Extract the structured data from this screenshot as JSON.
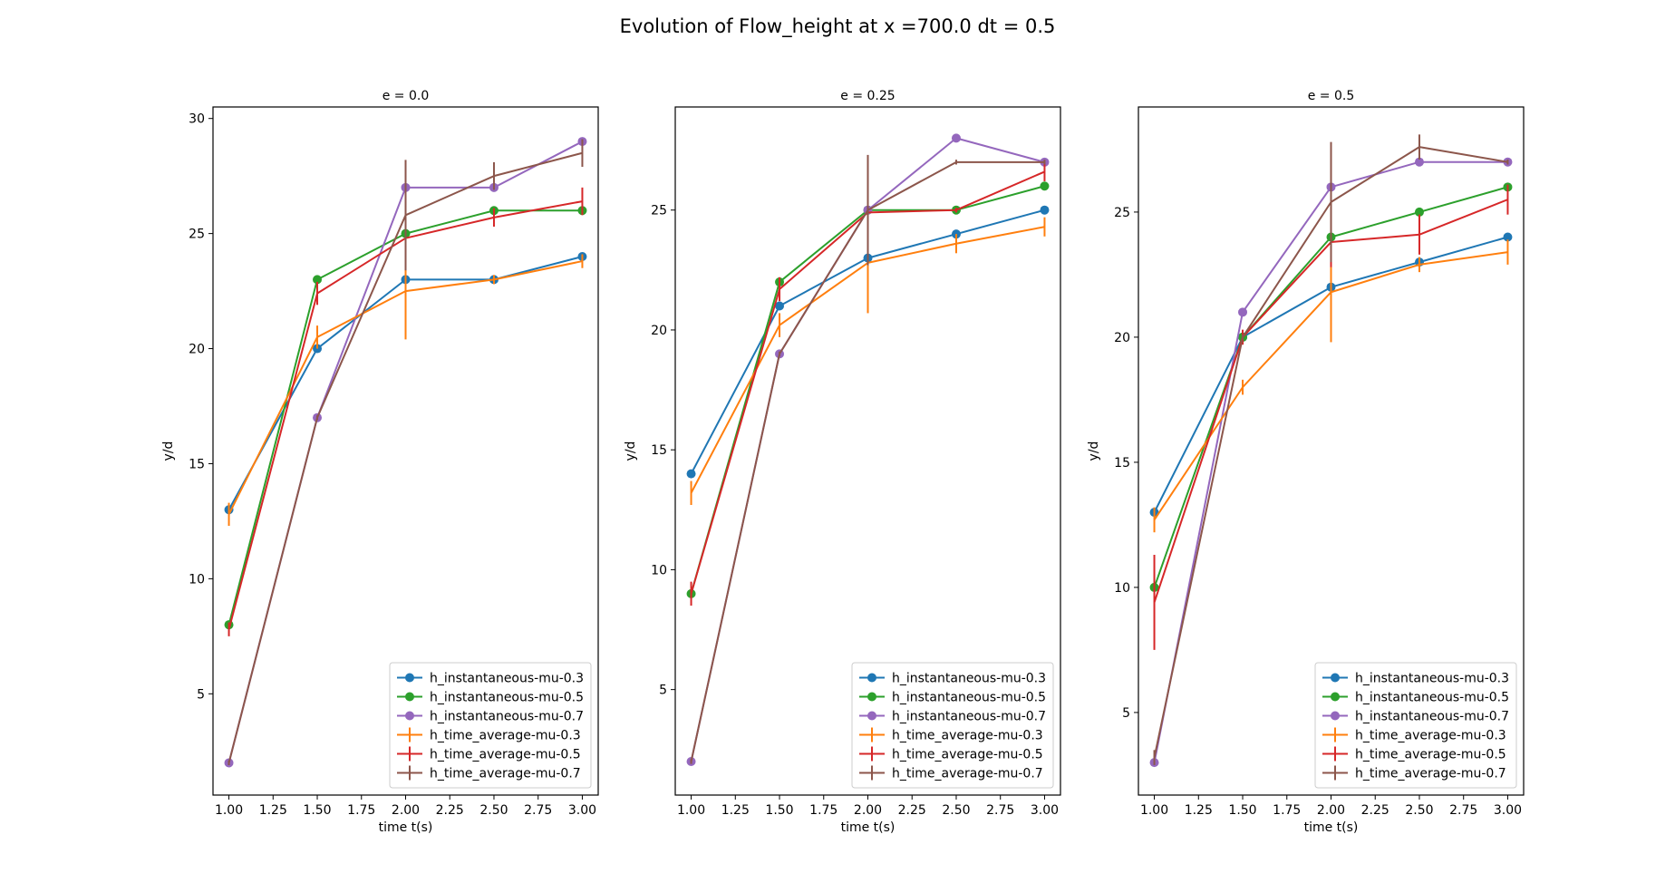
{
  "figure": {
    "suptitle": "Evolution of Flow_height at x =700.0 dt = 0.5"
  },
  "chart_data": [
    {
      "type": "line",
      "title": "e = 0.0",
      "xlabel": "time t(s)",
      "ylabel": "y/d",
      "xlim": [
        0.91,
        3.09
      ],
      "ylim": [
        0.6,
        30.5
      ],
      "xticks": [
        "1.00",
        "1.25",
        "1.50",
        "1.75",
        "2.00",
        "2.25",
        "2.50",
        "2.75",
        "3.00"
      ],
      "yticks": [
        "5",
        "10",
        "15",
        "20",
        "25",
        "30"
      ],
      "legend_position": "lower right",
      "x": [
        1.0,
        1.5,
        2.0,
        2.5,
        3.0
      ],
      "series": [
        {
          "name": "h_instantaneous-mu-0.3",
          "color": "#1f77b4",
          "marker": "circle",
          "values": [
            13,
            20,
            23,
            23,
            24
          ]
        },
        {
          "name": "h_instantaneous-mu-0.5",
          "color": "#2ca02c",
          "marker": "circle",
          "values": [
            8,
            23,
            25,
            26,
            26
          ]
        },
        {
          "name": "h_instantaneous-mu-0.7",
          "color": "#9467bd",
          "marker": "circle",
          "values": [
            2,
            17,
            27,
            27,
            29
          ]
        },
        {
          "name": "h_time_average-mu-0.3",
          "color": "#ff7f0e",
          "marker": "errorbar",
          "values": [
            12.8,
            20.5,
            22.5,
            23.0,
            23.8
          ],
          "errors": [
            0.5,
            0.5,
            2.1,
            0.2,
            0.3
          ]
        },
        {
          "name": "h_time_average-mu-0.5",
          "color": "#d62728",
          "marker": "errorbar",
          "values": [
            7.8,
            22.4,
            24.8,
            25.7,
            26.4
          ],
          "errors": [
            0.3,
            0.5,
            0.8,
            0.4,
            0.6
          ]
        },
        {
          "name": "h_time_average-mu-0.7",
          "color": "#8c564b",
          "marker": "errorbar",
          "values": [
            2.0,
            17.0,
            25.8,
            27.5,
            28.5
          ],
          "errors": [
            0.1,
            0.1,
            2.4,
            0.6,
            0.6
          ]
        }
      ]
    },
    {
      "type": "line",
      "title": "e = 0.25",
      "xlabel": "time t(s)",
      "ylabel": "y/d",
      "xlim": [
        0.91,
        3.09
      ],
      "ylim": [
        0.6,
        29.3
      ],
      "xticks": [
        "1.00",
        "1.25",
        "1.50",
        "1.75",
        "2.00",
        "2.25",
        "2.50",
        "2.75",
        "3.00"
      ],
      "yticks": [
        "5",
        "10",
        "15",
        "20",
        "25"
      ],
      "legend_position": "lower right",
      "x": [
        1.0,
        1.5,
        2.0,
        2.5,
        3.0
      ],
      "series": [
        {
          "name": "h_instantaneous-mu-0.3",
          "color": "#1f77b4",
          "marker": "circle",
          "values": [
            14,
            21,
            23,
            24,
            25
          ]
        },
        {
          "name": "h_instantaneous-mu-0.5",
          "color": "#2ca02c",
          "marker": "circle",
          "values": [
            9,
            22,
            25,
            25,
            26
          ]
        },
        {
          "name": "h_instantaneous-mu-0.7",
          "color": "#9467bd",
          "marker": "circle",
          "values": [
            2,
            19,
            25,
            28,
            27
          ]
        },
        {
          "name": "h_time_average-mu-0.3",
          "color": "#ff7f0e",
          "marker": "errorbar",
          "values": [
            13.2,
            20.2,
            22.8,
            23.6,
            24.3
          ],
          "errors": [
            0.5,
            0.5,
            2.1,
            0.4,
            0.4
          ]
        },
        {
          "name": "h_time_average-mu-0.5",
          "color": "#d62728",
          "marker": "errorbar",
          "values": [
            9.0,
            21.7,
            24.9,
            25.0,
            26.6
          ],
          "errors": [
            0.5,
            0.5,
            0.5,
            0.1,
            0.4
          ]
        },
        {
          "name": "h_time_average-mu-0.7",
          "color": "#8c564b",
          "marker": "errorbar",
          "values": [
            2.0,
            19.0,
            25.0,
            27.0,
            27.0
          ],
          "errors": [
            0.1,
            0.1,
            2.3,
            0.1,
            0.1
          ]
        }
      ]
    },
    {
      "type": "line",
      "title": "e = 0.5",
      "xlabel": "time t(s)",
      "ylabel": "y/d",
      "xlim": [
        0.91,
        3.09
      ],
      "ylim": [
        1.7,
        29.2
      ],
      "xticks": [
        "1.00",
        "1.25",
        "1.50",
        "1.75",
        "2.00",
        "2.25",
        "2.50",
        "2.75",
        "3.00"
      ],
      "yticks": [
        "5",
        "10",
        "15",
        "20",
        "25"
      ],
      "legend_position": "lower right",
      "x": [
        1.0,
        1.5,
        2.0,
        2.5,
        3.0
      ],
      "series": [
        {
          "name": "h_instantaneous-mu-0.3",
          "color": "#1f77b4",
          "marker": "circle",
          "values": [
            13,
            20,
            22,
            23,
            24
          ]
        },
        {
          "name": "h_instantaneous-mu-0.5",
          "color": "#2ca02c",
          "marker": "circle",
          "values": [
            10,
            20,
            24,
            25,
            26
          ]
        },
        {
          "name": "h_instantaneous-mu-0.7",
          "color": "#9467bd",
          "marker": "circle",
          "values": [
            3,
            21,
            26,
            27,
            27
          ]
        },
        {
          "name": "h_time_average-mu-0.3",
          "color": "#ff7f0e",
          "marker": "errorbar",
          "values": [
            12.7,
            18.0,
            21.8,
            22.9,
            23.4
          ],
          "errors": [
            0.5,
            0.3,
            2.0,
            0.3,
            0.5
          ]
        },
        {
          "name": "h_time_average-mu-0.5",
          "color": "#d62728",
          "marker": "errorbar",
          "values": [
            9.4,
            20.0,
            23.8,
            24.1,
            25.5
          ],
          "errors": [
            1.9,
            0.3,
            1.0,
            0.8,
            0.6
          ]
        },
        {
          "name": "h_time_average-mu-0.7",
          "color": "#8c564b",
          "marker": "errorbar",
          "values": [
            3.2,
            20.0,
            25.4,
            27.6,
            27.0
          ],
          "errors": [
            0.3,
            0.1,
            2.4,
            0.5,
            0.1
          ]
        }
      ]
    }
  ]
}
